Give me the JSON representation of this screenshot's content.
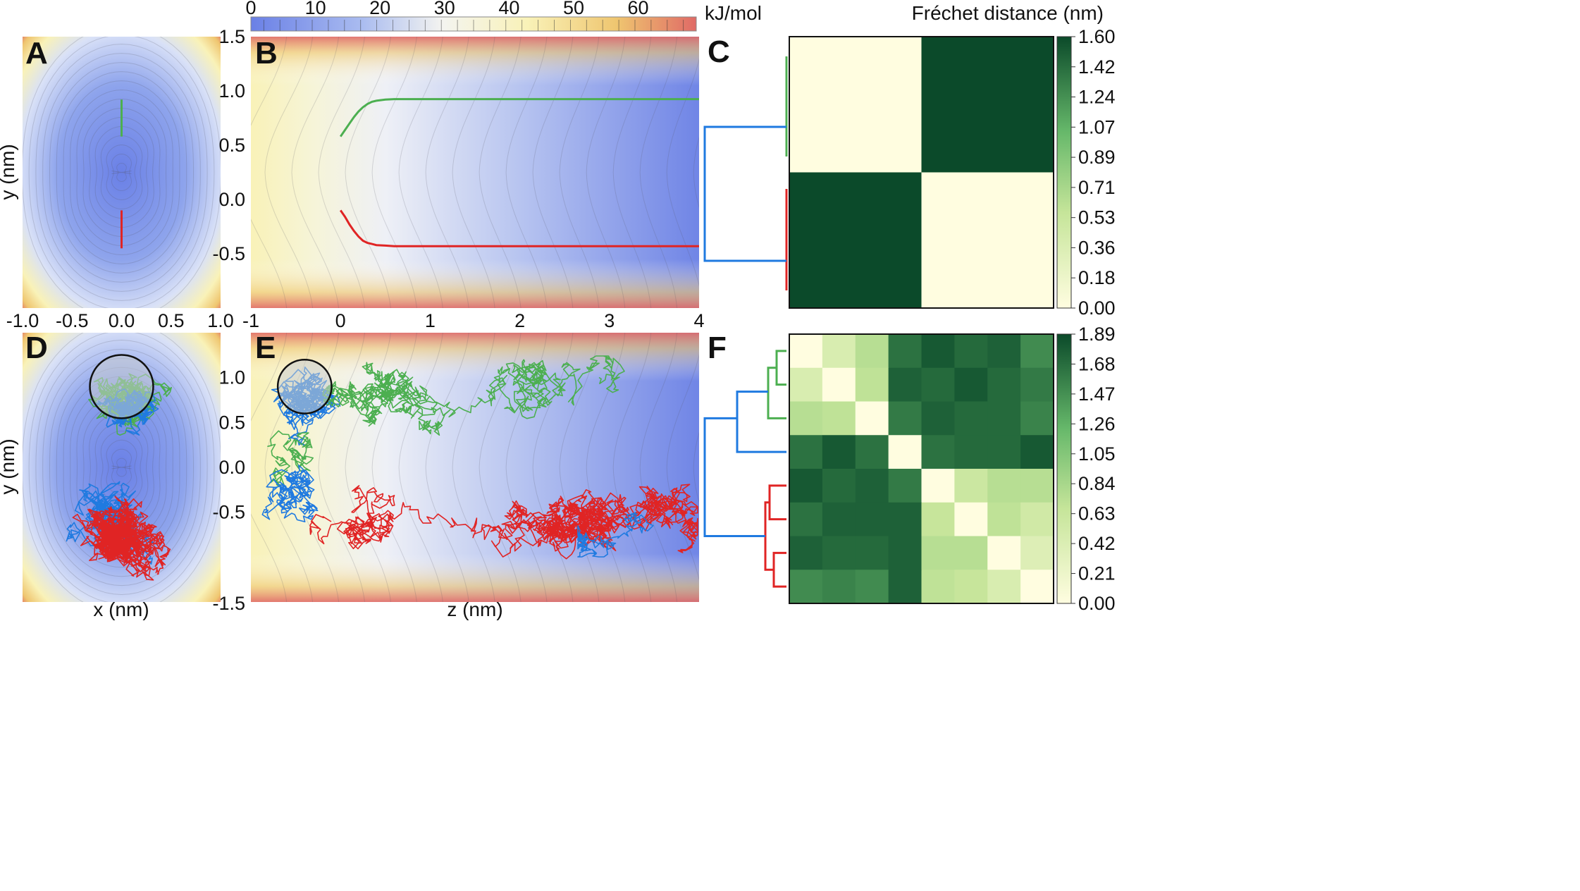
{
  "energy_colorbar": {
    "unit_label": "kJ/mol",
    "ticks": [
      0,
      10,
      20,
      30,
      40,
      50,
      60
    ],
    "range": [
      0,
      69
    ],
    "colors": [
      "#6a80e6",
      "#aabcf0",
      "#f4f4f0",
      "#f9f2b8",
      "#efc670",
      "#e06a66"
    ]
  },
  "chart_data": [
    {
      "panel": "A",
      "type": "contour",
      "xlabel": "",
      "ylabel": "y (nm)",
      "xlim": [
        -1.0,
        1.0
      ],
      "ylim": [
        -1.0,
        1.5
      ],
      "xticks": [
        "-1.0",
        "-0.5",
        "0.0",
        "0.5",
        "1.0"
      ],
      "series": [
        {
          "color": "#4caf50",
          "x": [
            0,
            0
          ],
          "y": [
            0.58,
            0.92
          ]
        },
        {
          "color": "#e02424",
          "x": [
            0,
            0
          ],
          "y": [
            -0.45,
            -0.1
          ]
        }
      ]
    },
    {
      "panel": "B",
      "type": "contour",
      "xlabel": "",
      "ylabel": "",
      "xlim": [
        -1,
        4
      ],
      "ylim": [
        -1.0,
        1.5
      ],
      "xticks": [
        "-1",
        "0",
        "1",
        "2",
        "3",
        "4"
      ],
      "yticks": [
        "1.5",
        "1.0",
        "0.5",
        "0.0",
        "-0.5"
      ],
      "series": [
        {
          "color": "#4caf50",
          "x": [
            0.0,
            0.05,
            0.1,
            0.15,
            0.2,
            0.25,
            0.3,
            0.35,
            0.4,
            0.5,
            0.6,
            0.8,
            1.0,
            4.0
          ],
          "y": [
            0.58,
            0.64,
            0.7,
            0.76,
            0.81,
            0.85,
            0.88,
            0.9,
            0.91,
            0.92,
            0.925,
            0.925,
            0.925,
            0.925
          ]
        },
        {
          "color": "#e02424",
          "x": [
            0.0,
            0.05,
            0.1,
            0.15,
            0.2,
            0.25,
            0.3,
            0.35,
            0.4,
            0.5,
            0.6,
            0.8,
            1.0,
            4.0
          ],
          "y": [
            -0.1,
            -0.16,
            -0.23,
            -0.29,
            -0.34,
            -0.38,
            -0.4,
            -0.41,
            -0.42,
            -0.425,
            -0.43,
            -0.43,
            -0.43,
            -0.43
          ]
        }
      ]
    },
    {
      "panel": "C",
      "type": "heatmap",
      "colorbar_label": "Fréchet distance (nm)",
      "colorbar_ticks": [
        "1.60",
        "1.42",
        "1.24",
        "1.07",
        "0.89",
        "0.71",
        "0.53",
        "0.36",
        "0.18",
        "0.00"
      ],
      "vmax": 1.6,
      "matrix": [
        [
          0.0,
          1.6
        ],
        [
          1.6,
          0.0
        ]
      ],
      "dendrogram_leaf_colors": [
        "#4caf50",
        "#e02424"
      ]
    },
    {
      "panel": "D",
      "type": "scatter",
      "xlabel": "x (nm)",
      "ylabel": "y (nm)",
      "xlim": [
        -1.0,
        1.0
      ],
      "ylim": [
        -1.5,
        1.5
      ],
      "basin_circle": {
        "x": 0.0,
        "y": 0.9,
        "r": 0.32
      }
    },
    {
      "panel": "E",
      "type": "scatter",
      "xlabel": "z (nm)",
      "ylabel": "",
      "xlim": [
        -1,
        4
      ],
      "ylim": [
        -1.5,
        1.5
      ],
      "yticks": [
        "1.0",
        "0.5",
        "0.0",
        "-0.5",
        "-1.5"
      ],
      "basin_circle": {
        "x": -0.4,
        "y": 0.9,
        "r": 0.3
      }
    },
    {
      "panel": "F",
      "type": "heatmap",
      "colorbar_ticks": [
        "1.89",
        "1.68",
        "1.47",
        "1.26",
        "1.05",
        "0.84",
        "0.63",
        "0.42",
        "0.21",
        "0.00"
      ],
      "vmax": 1.89,
      "matrix": [
        [
          0.0,
          0.45,
          0.75,
          1.65,
          1.8,
          1.7,
          1.75,
          1.5
        ],
        [
          0.45,
          0.0,
          0.7,
          1.75,
          1.7,
          1.8,
          1.7,
          1.6
        ],
        [
          0.75,
          0.7,
          0.0,
          1.6,
          1.75,
          1.7,
          1.7,
          1.55
        ],
        [
          1.65,
          1.8,
          1.65,
          0.0,
          1.65,
          1.7,
          1.7,
          1.8
        ],
        [
          1.8,
          1.7,
          1.75,
          1.6,
          0.0,
          0.6,
          0.75,
          0.75
        ],
        [
          1.65,
          1.75,
          1.75,
          1.75,
          0.65,
          0.0,
          0.7,
          0.55
        ],
        [
          1.75,
          1.7,
          1.7,
          1.75,
          0.75,
          0.75,
          0.0,
          0.4
        ],
        [
          1.5,
          1.55,
          1.5,
          1.75,
          0.7,
          0.65,
          0.45,
          0.0
        ]
      ],
      "dendrogram_leaf_colors": [
        "#4caf50",
        "#4caf50",
        "#4caf50",
        "#1f7ae0",
        "#e02424",
        "#e02424",
        "#e02424",
        "#e02424"
      ]
    }
  ]
}
